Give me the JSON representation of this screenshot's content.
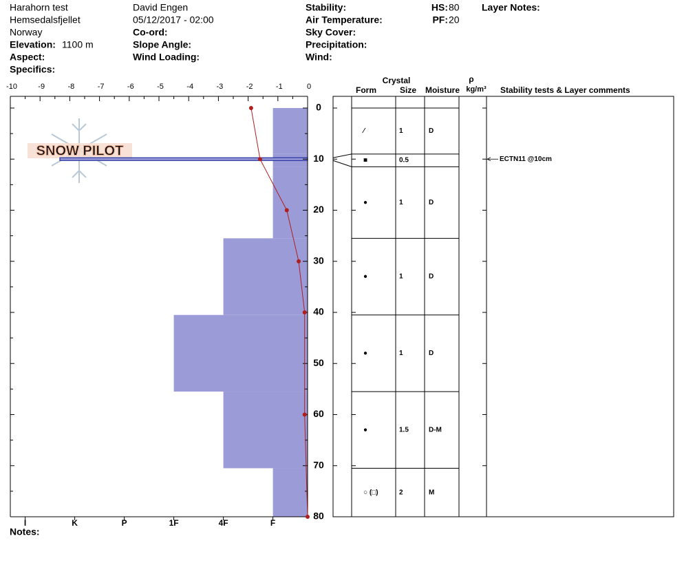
{
  "header": {
    "location": [
      "Harahorn test",
      "Hemsedalsfjellet",
      "Norway"
    ],
    "elevation": {
      "label": "Elevation:",
      "value": "1100 m"
    },
    "aspect": "Aspect:",
    "specifics": "Specifics:",
    "observer": "David Engen",
    "datetime": "05/12/2017 - 02:00",
    "coord": "Co-ord:",
    "slope_angle": "Slope Angle:",
    "wind_loading": "Wind Loading:",
    "stability": "Stability:",
    "air_temperature": "Air Temperature:",
    "sky_cover": "Sky Cover:",
    "precipitation": "Precipitation:",
    "wind": "Wind:",
    "hs": {
      "label": "HS:",
      "value": 80
    },
    "pf": {
      "label": "PF:",
      "value": 20
    },
    "layer_notes": "Layer Notes:"
  },
  "watermark": "SNOW PILOT",
  "notes": "Notes:",
  "chart_data": {
    "type": "snow-profile",
    "ylim": [
      0,
      80
    ],
    "yticks": [
      0,
      10,
      20,
      30,
      40,
      50,
      60,
      70,
      80
    ],
    "xlim": [
      -10,
      0
    ],
    "xticks": [
      -10,
      -9,
      -8,
      -7,
      -6,
      -5,
      -4,
      -3,
      -2,
      -1,
      0
    ],
    "hardness_lim": [
      6.3,
      0.3
    ],
    "hardness_ticks": [
      {
        "value": 6,
        "label": "I"
      },
      {
        "value": 5,
        "label": "K"
      },
      {
        "value": 4,
        "label": "P"
      },
      {
        "value": 3,
        "label": "1F"
      },
      {
        "value": 2,
        "label": "4F"
      },
      {
        "value": 1,
        "label": "F"
      }
    ],
    "hardness_color": "#9b9bd7",
    "temperature": {
      "depth": [
        0,
        10,
        20,
        30,
        40,
        60,
        80
      ],
      "values": [
        -1.9,
        -1.6,
        -0.7,
        -0.3,
        -0.1,
        -0.1,
        0
      ],
      "color": "#b01e1e"
    },
    "layers": {
      "top": [
        0,
        9,
        11.5,
        25.5,
        40.5,
        55.5,
        70.5
      ],
      "bottom": [
        9,
        11.5,
        25.5,
        40.5,
        55.5,
        70.5,
        80
      ],
      "hardness": [
        1,
        1,
        1,
        2,
        3,
        2,
        1
      ],
      "form": [
        "⁄",
        "■",
        "●",
        "●",
        "●",
        "●",
        "○ (□)"
      ],
      "size": [
        1,
        0.5,
        1,
        1,
        1,
        1.5,
        2
      ],
      "moisture": [
        "D",
        null,
        "D",
        "D",
        "D",
        "D-M",
        "M"
      ]
    },
    "columns": {
      "crystal": "Crystal",
      "form": "Form",
      "size": "Size",
      "moisture": "Moisture",
      "density_symbol": "ρ",
      "density_unit": "kg/m³",
      "comments": "Stability tests & Layer comments"
    },
    "stability_tests": [
      {
        "depth": 10,
        "label": "ECTN11 @10cm",
        "color": "#1f2f9f"
      }
    ]
  }
}
